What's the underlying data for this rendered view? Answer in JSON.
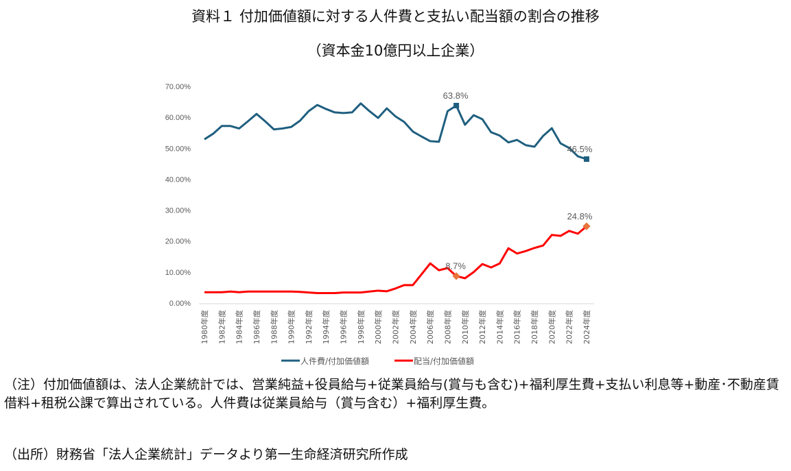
{
  "title": "資料１ 付加価値額に対する人件費と支払い配当額の割合の推移",
  "subtitle": "（資本金10億円以上企業）",
  "chart_data": {
    "type": "line",
    "title": "資料１ 付加価値額に対する人件費と支払い配当額の割合の推移",
    "x": [
      "1980年度",
      "1981年度",
      "1982年度",
      "1983年度",
      "1984年度",
      "1985年度",
      "1986年度",
      "1987年度",
      "1988年度",
      "1989年度",
      "1990年度",
      "1991年度",
      "1992年度",
      "1993年度",
      "1994年度",
      "1995年度",
      "1996年度",
      "1997年度",
      "1998年度",
      "1999年度",
      "2000年度",
      "2001年度",
      "2002年度",
      "2003年度",
      "2004年度",
      "2005年度",
      "2006年度",
      "2007年度",
      "2008年度",
      "2009年度",
      "2010年度",
      "2011年度",
      "2012年度",
      "2013年度",
      "2014年度",
      "2015年度",
      "2016年度",
      "2017年度",
      "2018年度",
      "2019年度",
      "2020年度",
      "2021年度",
      "2022年度",
      "2023年度",
      "2024年度"
    ],
    "x_tick_labels": [
      "1980年度",
      "1982年度",
      "1984年度",
      "1986年度",
      "1988年度",
      "1990年度",
      "1992年度",
      "1994年度",
      "1996年度",
      "1998年度",
      "2000年度",
      "2002年度",
      "2004年度",
      "2006年度",
      "2008年度",
      "2010年度",
      "2012年度",
      "2014年度",
      "2016年度",
      "2018年度",
      "2020年度",
      "2022年度",
      "2024年度"
    ],
    "y_tick_labels": [
      "0.00%",
      "10.00%",
      "20.00%",
      "30.00%",
      "40.00%",
      "50.00%",
      "60.00%",
      "70.00%"
    ],
    "ylim": [
      0,
      70
    ],
    "grid": false,
    "legend": "bottom",
    "series": [
      {
        "name": "人件費/付加価値額",
        "color": "#1f5f7f",
        "marker_color": "#1f5f7f",
        "values": [
          52.9,
          54.7,
          57.2,
          57.2,
          56.4,
          58.7,
          61.1,
          58.7,
          56.1,
          56.4,
          56.9,
          58.9,
          62.0,
          64.0,
          62.7,
          61.6,
          61.4,
          61.6,
          64.5,
          62.0,
          59.8,
          62.9,
          60.3,
          58.5,
          55.4,
          53.8,
          52.3,
          52.1,
          62.0,
          63.8,
          57.6,
          60.7,
          59.4,
          55.2,
          54.1,
          51.9,
          52.7,
          51.0,
          50.5,
          54.0,
          56.5,
          51.6,
          50.1,
          47.4,
          46.5
        ],
        "labels": [
          {
            "index": 29,
            "text": "63.8%"
          },
          {
            "index": 44,
            "text": "46.5%"
          }
        ]
      },
      {
        "name": "配当/付加価値額",
        "color": "#ff0000",
        "marker_color": "#e8743b",
        "values": [
          3.5,
          3.5,
          3.5,
          3.7,
          3.5,
          3.7,
          3.7,
          3.7,
          3.7,
          3.7,
          3.7,
          3.6,
          3.4,
          3.2,
          3.2,
          3.2,
          3.4,
          3.4,
          3.4,
          3.7,
          4.0,
          3.8,
          4.7,
          5.8,
          5.8,
          9.3,
          12.8,
          10.6,
          11.3,
          8.7,
          8.0,
          10.0,
          12.6,
          11.5,
          12.8,
          17.7,
          16.0,
          16.8,
          17.8,
          18.6,
          22.0,
          21.7,
          23.3,
          22.4,
          24.8
        ],
        "labels": [
          {
            "index": 29,
            "text": "8.7%"
          },
          {
            "index": 44,
            "text": "24.8%"
          }
        ]
      }
    ]
  },
  "notes": [
    "（注）付加価値額は、法人企業統計では、営業純益+役員給与+従業員給与(賞与も含む)+福利厚生費+支払い利息等+動産･不動産賃借料+租税公課で算出されている。人件費は従業員給与（賞与含む）+福利厚生費。",
    "（出所）財務省「法人企業統計」データより第一生命経済研究所作成"
  ]
}
